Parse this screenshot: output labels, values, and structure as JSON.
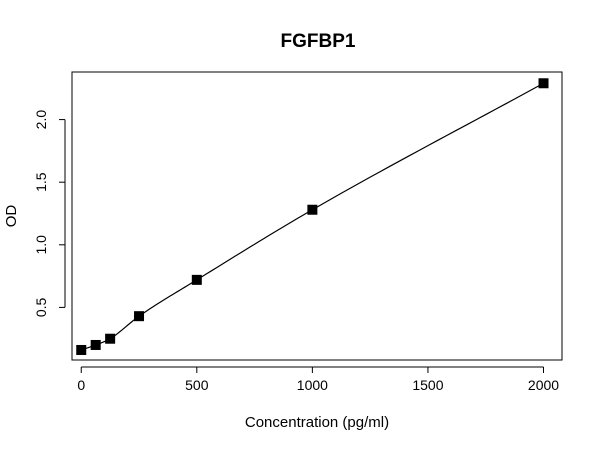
{
  "chart_data": {
    "type": "scatter",
    "title": "FGFBP1",
    "xlabel": "Concentration (pg/ml)",
    "ylabel": "OD",
    "xlim": [
      -40,
      2080
    ],
    "ylim": [
      0.08,
      2.38
    ],
    "xticks": [
      {
        "value": 0,
        "label": "0"
      },
      {
        "value": 500,
        "label": "500"
      },
      {
        "value": 1000,
        "label": "1000"
      },
      {
        "value": 1500,
        "label": "1500"
      },
      {
        "value": 2000,
        "label": "2000"
      }
    ],
    "yticks": [
      {
        "value": 0.5,
        "label": "0.5"
      },
      {
        "value": 1.0,
        "label": "1.0"
      },
      {
        "value": 1.5,
        "label": "1.5"
      },
      {
        "value": 2.0,
        "label": "2.0"
      }
    ],
    "grid": false,
    "legend": "none",
    "series": [
      {
        "marker": "square",
        "fit_line": true,
        "x": [
          0,
          62.5,
          125,
          250,
          500,
          1000,
          2000
        ],
        "y": [
          0.16,
          0.2,
          0.25,
          0.43,
          0.72,
          1.28,
          2.29
        ]
      }
    ]
  }
}
